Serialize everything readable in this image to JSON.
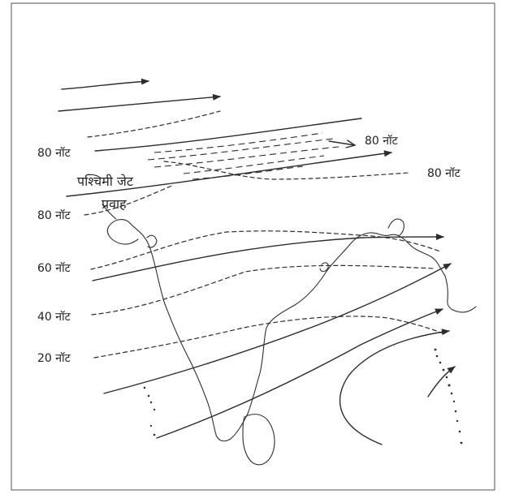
{
  "map": {
    "labels": {
      "label_80_left_top": "80 नॉट",
      "label_80_right_top": "80 नॉट",
      "label_80_right_mid": "80 नॉट",
      "label_80_left_mid": "80 नॉट",
      "label_60": "60 नॉट",
      "label_40": "40 नॉट",
      "label_20": "20 नॉट",
      "jet_text_line1": "पश्चिमी  जेट",
      "jet_text_line2": "प्रवाह"
    }
  }
}
